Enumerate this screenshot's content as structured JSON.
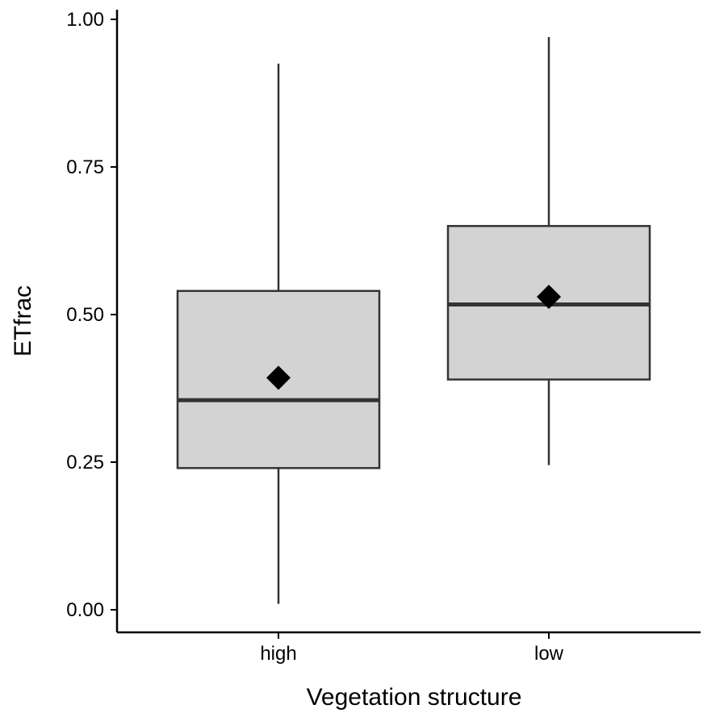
{
  "chart_data": {
    "type": "boxplot",
    "title": "",
    "xlabel": "Vegetation structure",
    "ylabel": "ETfrac",
    "categories": [
      "high",
      "low"
    ],
    "boxes": [
      {
        "category": "high",
        "whisker_low": 0.01,
        "q1": 0.24,
        "median": 0.355,
        "q3": 0.54,
        "whisker_high": 0.925,
        "mean": 0.393
      },
      {
        "category": "low",
        "whisker_low": 0.245,
        "q1": 0.39,
        "median": 0.517,
        "q3": 0.65,
        "whisker_high": 0.97,
        "mean": 0.53
      }
    ],
    "yticks": [
      0,
      0.25,
      0.5,
      0.75,
      1
    ],
    "ytick_labels": [
      "0.00",
      "0.25",
      "0.50",
      "0.75",
      "1.00"
    ],
    "ylim": [
      -0.04,
      1.02
    ],
    "grid": false,
    "legend": "none",
    "colors": {
      "box_fill": "#d3d3d3",
      "box_stroke": "#333333",
      "mean_marker": "#000000",
      "axis": "#000000"
    },
    "mean_marker_shape": "diamond"
  }
}
